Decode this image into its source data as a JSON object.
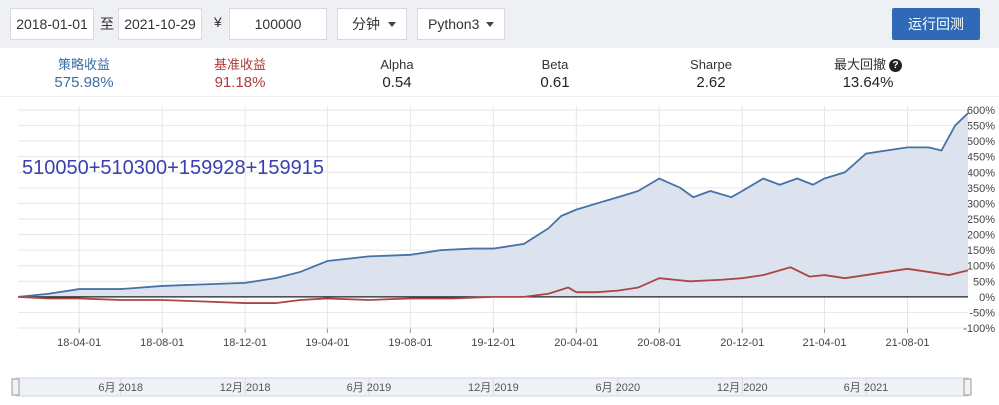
{
  "toolbar": {
    "start_date": "2018-01-01",
    "to_label": "至",
    "end_date": "2021-10-29",
    "currency": "¥",
    "capital": "100000",
    "frequency": "分钟",
    "language": "Python3",
    "run_button": "运行回测"
  },
  "stats": [
    {
      "label": "策略收益",
      "value": "575.98%",
      "color": "#3a6ea5"
    },
    {
      "label": "基准收益",
      "value": "91.18%",
      "color": "#b03a3a"
    },
    {
      "label": "Alpha",
      "value": "0.54",
      "color": "#222222"
    },
    {
      "label": "Beta",
      "value": "0.61",
      "color": "#222222"
    },
    {
      "label": "Sharpe",
      "value": "2.62",
      "color": "#222222"
    },
    {
      "label": "最大回撤",
      "value": "13.64%",
      "color": "#222222",
      "help_icon": "question-circle-icon"
    }
  ],
  "chart_data": {
    "type": "line",
    "title": "510050+510300+159928+159915",
    "xlabel": "",
    "ylabel": "",
    "x_tick_labels": [
      "18-04-01",
      "18-08-01",
      "18-12-01",
      "19-04-01",
      "19-08-01",
      "19-12-01",
      "20-04-01",
      "20-08-01",
      "20-12-01",
      "21-04-01",
      "21-08-01"
    ],
    "y_tick_labels": [
      "600%",
      "550%",
      "500%",
      "450%",
      "400%",
      "350%",
      "300%",
      "250%",
      "200%",
      "150%",
      "100%",
      "50%",
      "0%",
      "-50%",
      "-100%"
    ],
    "ylim": [
      -100,
      600
    ],
    "x_range": [
      "2018-01-01",
      "2021-10-29"
    ],
    "grid": true,
    "series": [
      {
        "name": "策略收益",
        "color": "#4572a7",
        "fill": "#dde3ee",
        "x": [
          "2018-01-01",
          "2018-02-15",
          "2018-04-01",
          "2018-06-01",
          "2018-08-01",
          "2018-10-01",
          "2018-12-01",
          "2019-01-15",
          "2019-02-20",
          "2019-04-01",
          "2019-06-01",
          "2019-08-01",
          "2019-09-15",
          "2019-11-01",
          "2019-12-01",
          "2020-01-15",
          "2020-02-20",
          "2020-03-10",
          "2020-04-01",
          "2020-05-01",
          "2020-06-01",
          "2020-07-01",
          "2020-08-01",
          "2020-09-01",
          "2020-09-20",
          "2020-10-15",
          "2020-11-15",
          "2020-12-01",
          "2021-01-01",
          "2021-01-25",
          "2021-02-20",
          "2021-03-15",
          "2021-04-01",
          "2021-05-01",
          "2021-06-01",
          "2021-07-01",
          "2021-08-01",
          "2021-09-01",
          "2021-09-20",
          "2021-10-10",
          "2021-10-29"
        ],
        "values": [
          0,
          10,
          25,
          25,
          35,
          40,
          45,
          60,
          80,
          115,
          130,
          135,
          150,
          155,
          155,
          170,
          220,
          260,
          280,
          300,
          320,
          340,
          380,
          350,
          320,
          340,
          320,
          340,
          380,
          360,
          380,
          360,
          380,
          400,
          460,
          470,
          480,
          480,
          470,
          550,
          590
        ]
      },
      {
        "name": "基准收益",
        "color": "#aa4643",
        "x": [
          "2018-01-01",
          "2018-02-15",
          "2018-04-01",
          "2018-06-01",
          "2018-08-01",
          "2018-10-01",
          "2018-12-01",
          "2019-01-15",
          "2019-02-20",
          "2019-04-01",
          "2019-06-01",
          "2019-08-01",
          "2019-10-01",
          "2019-12-01",
          "2020-01-15",
          "2020-02-20",
          "2020-03-20",
          "2020-04-01",
          "2020-05-01",
          "2020-06-01",
          "2020-07-01",
          "2020-08-01",
          "2020-09-15",
          "2020-11-01",
          "2020-12-01",
          "2021-01-01",
          "2021-02-10",
          "2021-03-10",
          "2021-04-01",
          "2021-05-01",
          "2021-06-01",
          "2021-07-01",
          "2021-08-01",
          "2021-09-01",
          "2021-10-01",
          "2021-10-29"
        ],
        "values": [
          0,
          -5,
          -5,
          -10,
          -10,
          -15,
          -20,
          -20,
          -10,
          -5,
          -10,
          -5,
          -5,
          0,
          0,
          10,
          30,
          15,
          15,
          20,
          30,
          60,
          50,
          55,
          60,
          70,
          95,
          65,
          70,
          60,
          70,
          80,
          90,
          80,
          70,
          85
        ]
      }
    ],
    "navigator": {
      "labels": [
        "6月 2018",
        "12月 2018",
        "6月 2019",
        "12月 2019",
        "6月 2020",
        "12月 2020",
        "6月 2021"
      ]
    }
  }
}
